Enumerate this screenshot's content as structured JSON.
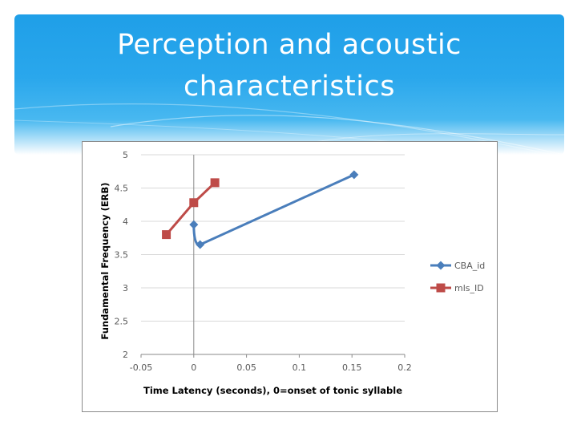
{
  "slide": {
    "title_line1": "Perception and acoustic",
    "title_line2": "characteristics"
  },
  "colors": {
    "header_top": "#1f9fe8",
    "series_blue": "#4a7ebb",
    "series_red": "#be4b48",
    "grid": "#d9d9d9"
  },
  "chart_data": {
    "type": "line",
    "xlabel": "Time Latency (seconds), 0=onset of tonic syllable",
    "ylabel": "Fundamental Frequency (ERB)",
    "xlim": [
      -0.05,
      0.2
    ],
    "ylim": [
      2,
      5
    ],
    "xticks": [
      "-0.05",
      "0",
      "0.05",
      "0.1",
      "0.15",
      "0.2"
    ],
    "yticks": [
      "2",
      "2.5",
      "3",
      "3.5",
      "4",
      "4.5",
      "5"
    ],
    "xtick_values": [
      -0.05,
      0,
      0.05,
      0.1,
      0.15,
      0.2
    ],
    "ytick_values": [
      2,
      2.5,
      3,
      3.5,
      4,
      4.5,
      5
    ],
    "grid": "horizontal",
    "legend_position": "right",
    "series": [
      {
        "name": "CBA_id",
        "marker": "diamond",
        "color": "#4a7ebb",
        "smooth": true,
        "points": [
          [
            0,
            3.95
          ],
          [
            0.006,
            3.65
          ],
          [
            0.152,
            4.7
          ]
        ]
      },
      {
        "name": "mls_ID",
        "marker": "square",
        "color": "#be4b48",
        "smooth": false,
        "points": [
          [
            -0.026,
            3.8
          ],
          [
            0,
            4.28
          ],
          [
            0.02,
            4.58
          ]
        ]
      }
    ]
  }
}
